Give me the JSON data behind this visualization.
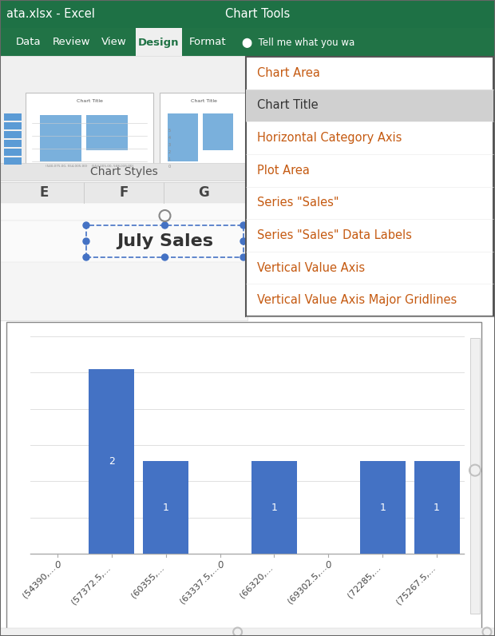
{
  "title_bar_text": "ata.xlsx - Excel",
  "chart_tools_text": "Chart Tools",
  "ribbon_tabs": [
    "Data",
    "Review",
    "View",
    "Design",
    "Format"
  ],
  "active_tab": "Design",
  "tell_me_text": "Tell me what you wa",
  "chart_styles_text": "Chart Styles",
  "col_headers": [
    "E",
    "F",
    "G"
  ],
  "cell_text": "July Sales",
  "dropdown_items": [
    "Chart Area",
    "Chart Title",
    "Horizontal Category Axis",
    "Plot Area",
    "Series \"Sales\"",
    "Series \"Sales\" Data Labels",
    "Vertical Value Axis",
    "Vertical Value Axis Major Gridlines"
  ],
  "selected_item": "Chart Title",
  "bar_values": [
    0,
    2,
    1,
    0,
    1,
    0,
    1,
    1
  ],
  "bar_labels": [
    "(54390,...",
    "(57372.5,...",
    "(60355,...",
    "(63337.5,...",
    "(66320,...",
    "(69302.5,...",
    "(72285,...",
    "(75267.5,..."
  ],
  "bar_color": "#4472C4",
  "bg_color_title": "#1e7145",
  "bg_color_ribbon": "#217346",
  "active_tab_bg": "#f0f0f0",
  "dropdown_text_color": "#C55A11",
  "selected_bg": "#d0d0d0",
  "grid_color": "#e0e0e0",
  "axis_color": "#aaaaaa",
  "lightbulb": "⬤"
}
